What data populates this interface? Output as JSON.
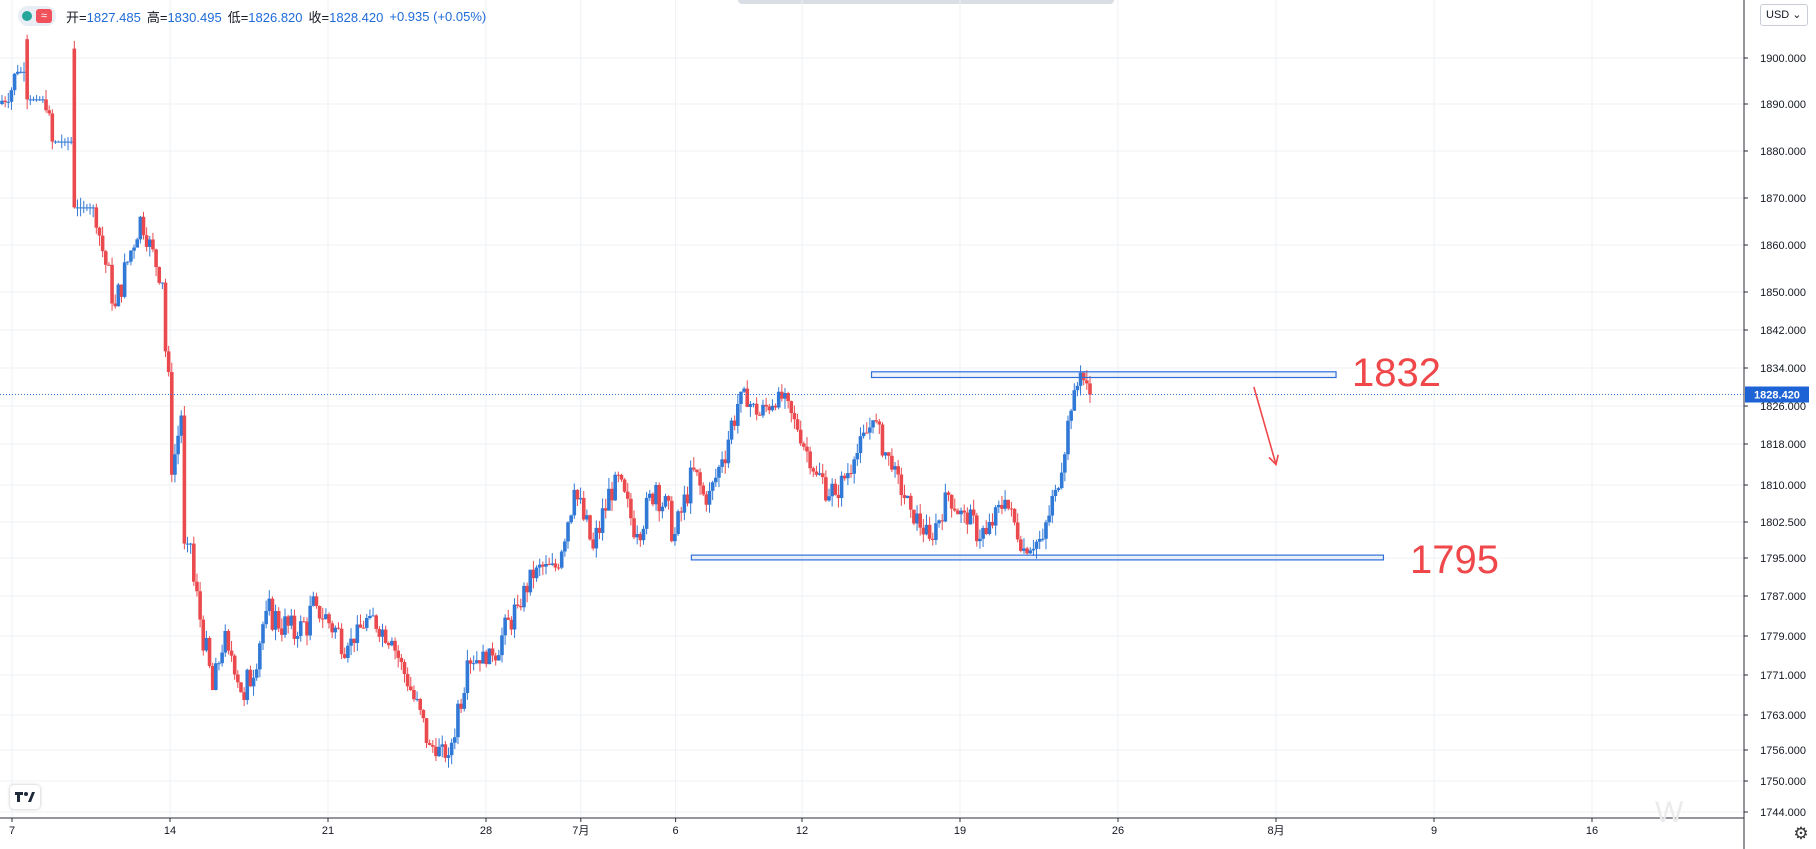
{
  "ohlc": {
    "open_label": "开",
    "open": "1827.485",
    "high_label": "高",
    "high": "1830.495",
    "low_label": "低",
    "low": "1826.820",
    "close_label": "收",
    "close": "1828.420",
    "change": "+0.935 (+0.05%)",
    "wave_symbol": "≈"
  },
  "currency": "USD",
  "watermark": "W",
  "colors": {
    "up": "#3179d6",
    "down": "#ea4a4e",
    "grid": "#eef1f5",
    "zone": "#2e6fd8",
    "annotation": "#f0474a",
    "price_tag": "#1e63d6"
  },
  "chart_data": {
    "type": "candlestick",
    "symbol_hint": "XAUUSD daily-like 4H view",
    "y_axis": {
      "ticks": [
        1900.0,
        1890.0,
        1880.0,
        1870.0,
        1860.0,
        1850.0,
        1842.0,
        1834.0,
        1826.0,
        1818.0,
        1810.0,
        1802.5,
        1795.0,
        1787.0,
        1779.0,
        1771.0,
        1763.0,
        1756.0,
        1750.0,
        1744.0
      ],
      "tick_labels": [
        "1900.000",
        "1890.000",
        "1880.000",
        "1870.000",
        "1860.000",
        "1850.000",
        "1842.000",
        "1834.000",
        "1826.000",
        "1818.000",
        "1810.000",
        "1802.500",
        "1795.000",
        "1787.000",
        "1779.000",
        "1771.000",
        "1763.000",
        "1756.000",
        "1750.000",
        "1744.000"
      ],
      "current_price": 1828.42,
      "current_price_label": "1828.420"
    },
    "x_axis": {
      "ticks": [
        {
          "label": "7",
          "pos": 0.0
        },
        {
          "label": "14",
          "pos": 5.0
        },
        {
          "label": "21",
          "pos": 10.0
        },
        {
          "label": "28",
          "pos": 15.0
        },
        {
          "label": "7月",
          "pos": 18.0
        },
        {
          "label": "6",
          "pos": 21.0
        },
        {
          "label": "12",
          "pos": 25.0
        },
        {
          "label": "19",
          "pos": 30.0
        },
        {
          "label": "26",
          "pos": 35.0
        },
        {
          "label": "8月",
          "pos": 40.0
        },
        {
          "label": "9",
          "pos": 45.0
        },
        {
          "label": "16",
          "pos": 50.0
        }
      ]
    },
    "zones": [
      {
        "from_pos": 27.2,
        "to_pos": 41.9,
        "low": 1832.0,
        "high": 1833.2,
        "label": "1832"
      },
      {
        "from_pos": 21.5,
        "to_pos": 43.4,
        "low": 1794.6,
        "high": 1795.6,
        "label": "1795"
      }
    ],
    "arrow": {
      "from_pos": 39.3,
      "from_price": 1830.0,
      "to_pos": 40.0,
      "to_price": 1814.0
    },
    "segments": [
      {
        "start": 1890.0,
        "end": 1893.0,
        "hi": 1892.0,
        "lo": 1880.0,
        "n": 4
      },
      {
        "start": 1893.0,
        "end": 1904.0,
        "hi": 1895.0,
        "lo": 1880.0,
        "n": 4
      },
      {
        "start": 1904.0,
        "end": 1888.0,
        "hi": 1889.0,
        "lo": 1880.0,
        "n": 8
      },
      {
        "start": 1888.0,
        "end": 1902.0,
        "hi": 1880.0,
        "lo": 1870.0,
        "n": 7
      },
      {
        "start": 1902.0,
        "end": 1862.0,
        "hi": 1866.0,
        "lo": 1850.0,
        "n": 9
      },
      {
        "start": 1862.0,
        "end": 1847.0,
        "hi": 1864.0,
        "lo": 1844.0,
        "n": 5
      },
      {
        "start": 1847.0,
        "end": 1866.0,
        "hi": 1869.0,
        "lo": 1850.0,
        "n": 8
      },
      {
        "start": 1866.0,
        "end": 1852.0,
        "hi": 1864.0,
        "lo": 1850.0,
        "n": 7
      },
      {
        "start": 1852.0,
        "end": 1812.0,
        "hi": 1863.0,
        "lo": 1808.0,
        "n": 3
      },
      {
        "start": 1812.0,
        "end": 1824.0,
        "hi": 1826.0,
        "lo": 1808.0,
        "n": 3
      },
      {
        "start": 1824.0,
        "end": 1790.0,
        "hi": 1796.0,
        "lo": 1788.0,
        "n": 4
      },
      {
        "start": 1790.0,
        "end": 1768.0,
        "hi": 1787.0,
        "lo": 1768.0,
        "n": 6
      },
      {
        "start": 1768.0,
        "end": 1780.0,
        "hi": 1783.0,
        "lo": 1768.0,
        "n": 4
      },
      {
        "start": 1780.0,
        "end": 1766.0,
        "hi": 1774.0,
        "lo": 1761.0,
        "n": 6
      },
      {
        "start": 1766.0,
        "end": 1784.0,
        "hi": 1788.0,
        "lo": 1763.0,
        "n": 7
      },
      {
        "start": 1784.0,
        "end": 1779.0,
        "hi": 1790.0,
        "lo": 1771.0,
        "n": 10
      },
      {
        "start": 1779.0,
        "end": 1785.0,
        "hi": 1795.0,
        "lo": 1772.0,
        "n": 6
      },
      {
        "start": 1785.0,
        "end": 1777.0,
        "hi": 1791.0,
        "lo": 1772.0,
        "n": 10
      },
      {
        "start": 1777.0,
        "end": 1783.0,
        "hi": 1786.0,
        "lo": 1776.0,
        "n": 7
      },
      {
        "start": 1783.0,
        "end": 1778.0,
        "hi": 1786.0,
        "lo": 1773.0,
        "n": 7
      },
      {
        "start": 1778.0,
        "end": 1768.0,
        "hi": 1779.0,
        "lo": 1768.0,
        "n": 6
      },
      {
        "start": 1768.0,
        "end": 1757.0,
        "hi": 1770.0,
        "lo": 1751.0,
        "n": 6
      },
      {
        "start": 1757.0,
        "end": 1755.0,
        "hi": 1764.0,
        "lo": 1755.0,
        "n": 6
      },
      {
        "start": 1755.0,
        "end": 1774.0,
        "hi": 1776.0,
        "lo": 1752.0,
        "n": 6
      },
      {
        "start": 1774.0,
        "end": 1775.0,
        "hi": 1780.0,
        "lo": 1771.0,
        "n": 8
      },
      {
        "start": 1775.0,
        "end": 1785.0,
        "hi": 1790.0,
        "lo": 1773.0,
        "n": 8
      },
      {
        "start": 1785.0,
        "end": 1793.0,
        "hi": 1797.0,
        "lo": 1783.0,
        "n": 6
      },
      {
        "start": 1793.0,
        "end": 1793.0,
        "hi": 1796.0,
        "lo": 1790.0,
        "n": 6
      },
      {
        "start": 1793.0,
        "end": 1809.0,
        "hi": 1814.0,
        "lo": 1792.0,
        "n": 6
      },
      {
        "start": 1809.0,
        "end": 1797.0,
        "hi": 1812.0,
        "lo": 1792.0,
        "n": 6
      },
      {
        "start": 1797.0,
        "end": 1812.0,
        "hi": 1817.0,
        "lo": 1796.0,
        "n": 7
      },
      {
        "start": 1812.0,
        "end": 1800.0,
        "hi": 1814.0,
        "lo": 1797.0,
        "n": 7
      },
      {
        "start": 1800.0,
        "end": 1810.0,
        "hi": 1813.0,
        "lo": 1796.0,
        "n": 6
      },
      {
        "start": 1810.0,
        "end": 1800.0,
        "hi": 1812.0,
        "lo": 1791.0,
        "n": 6
      },
      {
        "start": 1800.0,
        "end": 1813.0,
        "hi": 1816.0,
        "lo": 1799.0,
        "n": 6
      },
      {
        "start": 1813.0,
        "end": 1806.0,
        "hi": 1815.0,
        "lo": 1801.0,
        "n": 4
      },
      {
        "start": 1806.0,
        "end": 1815.0,
        "hi": 1818.0,
        "lo": 1804.0,
        "n": 5
      },
      {
        "start": 1815.0,
        "end": 1829.0,
        "hi": 1834.0,
        "lo": 1812.0,
        "n": 6
      },
      {
        "start": 1829.0,
        "end": 1824.0,
        "hi": 1831.0,
        "lo": 1822.0,
        "n": 6
      },
      {
        "start": 1824.0,
        "end": 1829.0,
        "hi": 1835.0,
        "lo": 1820.0,
        "n": 6
      },
      {
        "start": 1829.0,
        "end": 1821.0,
        "hi": 1832.0,
        "lo": 1818.0,
        "n": 6
      },
      {
        "start": 1821.0,
        "end": 1812.0,
        "hi": 1820.0,
        "lo": 1810.0,
        "n": 6
      },
      {
        "start": 1812.0,
        "end": 1808.0,
        "hi": 1815.0,
        "lo": 1796.0,
        "n": 6
      },
      {
        "start": 1808.0,
        "end": 1815.0,
        "hi": 1818.0,
        "lo": 1805.0,
        "n": 6
      },
      {
        "start": 1815.0,
        "end": 1823.0,
        "hi": 1825.0,
        "lo": 1812.0,
        "n": 6
      },
      {
        "start": 1823.0,
        "end": 1813.0,
        "hi": 1825.0,
        "lo": 1810.0,
        "n": 6
      },
      {
        "start": 1813.0,
        "end": 1805.0,
        "hi": 1812.0,
        "lo": 1800.0,
        "n": 6
      },
      {
        "start": 1805.0,
        "end": 1799.0,
        "hi": 1807.0,
        "lo": 1794.0,
        "n": 6
      },
      {
        "start": 1799.0,
        "end": 1808.0,
        "hi": 1810.0,
        "lo": 1796.0,
        "n": 6
      },
      {
        "start": 1808.0,
        "end": 1802.0,
        "hi": 1809.0,
        "lo": 1796.0,
        "n": 6
      },
      {
        "start": 1802.0,
        "end": 1800.0,
        "hi": 1810.0,
        "lo": 1790.0,
        "n": 6
      },
      {
        "start": 1800.0,
        "end": 1807.0,
        "hi": 1812.0,
        "lo": 1798.0,
        "n": 6
      },
      {
        "start": 1807.0,
        "end": 1797.0,
        "hi": 1808.0,
        "lo": 1795.0,
        "n": 6
      },
      {
        "start": 1797.0,
        "end": 1799.0,
        "hi": 1805.0,
        "lo": 1795.0,
        "n": 6
      },
      {
        "start": 1799.0,
        "end": 1809.0,
        "hi": 1812.0,
        "lo": 1794.0,
        "n": 4
      },
      {
        "start": 1809.0,
        "end": 1825.0,
        "hi": 1827.0,
        "lo": 1808.0,
        "n": 5
      },
      {
        "start": 1825.0,
        "end": 1833.0,
        "hi": 1834.0,
        "lo": 1823.0,
        "n": 3
      },
      {
        "start": 1833.0,
        "end": 1828.4,
        "hi": 1832.0,
        "lo": 1826.8,
        "n": 3
      }
    ]
  }
}
